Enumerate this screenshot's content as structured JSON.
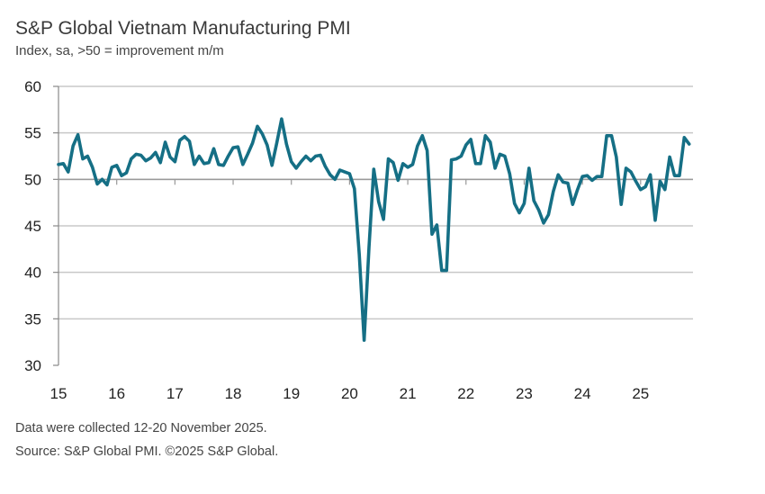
{
  "header": {
    "title": "S&P Global Vietnam Manufacturing PMI",
    "subtitle": "Index, sa, >50 = improvement m/m"
  },
  "footer": {
    "note": "Data were collected 12-20 November 2025.",
    "source": "Source: S&P Global PMI. ©2025 S&P Global."
  },
  "chart_data": {
    "type": "line",
    "title": "S&P Global Vietnam Manufacturing PMI",
    "subtitle": "Index, sa, >50 = improvement m/m",
    "x_start": "2015-01",
    "x_end": "2025-11",
    "frequency": "monthly",
    "x_tick_labels": [
      "15",
      "16",
      "17",
      "18",
      "19",
      "20",
      "21",
      "22",
      "23",
      "24",
      "25"
    ],
    "y_tick_labels": [
      "30",
      "35",
      "40",
      "45",
      "50",
      "55",
      "60"
    ],
    "ylim": [
      30,
      60
    ],
    "x_axis_crosses_at": 50,
    "grid": "horizontal",
    "line_color": "#156f85",
    "series": [
      {
        "values": [
          51.6,
          51.7,
          50.8,
          53.6,
          54.8,
          52.2,
          52.5,
          51.3,
          49.5,
          50.0,
          49.4,
          51.3,
          51.5,
          50.4,
          50.7,
          52.2,
          52.7,
          52.6,
          52.0,
          52.3,
          52.9,
          51.8,
          54.0,
          52.4,
          51.9,
          54.2,
          54.6,
          54.1,
          51.6,
          52.5,
          51.7,
          51.8,
          53.3,
          51.6,
          51.5,
          52.5,
          53.4,
          53.5,
          51.6,
          52.7,
          53.9,
          55.7,
          54.9,
          53.7,
          51.5,
          53.9,
          56.5,
          53.8,
          51.9,
          51.2,
          51.9,
          52.5,
          52.0,
          52.5,
          52.6,
          51.4,
          50.5,
          50.0,
          51.0,
          50.8,
          50.6,
          49.0,
          41.9,
          32.7,
          42.7,
          51.1,
          47.6,
          45.7,
          52.2,
          51.8,
          49.9,
          51.7,
          51.3,
          51.6,
          53.6,
          54.7,
          53.1,
          44.1,
          45.1,
          40.2,
          40.2,
          52.1,
          52.2,
          52.5,
          53.7,
          54.3,
          51.7,
          51.7,
          54.7,
          54.0,
          51.2,
          52.7,
          52.5,
          50.6,
          47.4,
          46.4,
          47.4,
          51.2,
          47.7,
          46.7,
          45.3,
          46.2,
          48.7,
          50.5,
          49.7,
          49.6,
          47.3,
          48.9,
          50.3,
          50.4,
          49.9,
          50.3,
          50.3,
          54.7,
          54.7,
          52.4,
          47.3,
          51.2,
          50.8,
          49.8,
          48.9,
          49.2,
          50.5,
          45.6,
          49.8,
          48.9,
          52.4,
          50.4,
          50.4,
          54.5,
          53.8
        ]
      }
    ]
  }
}
